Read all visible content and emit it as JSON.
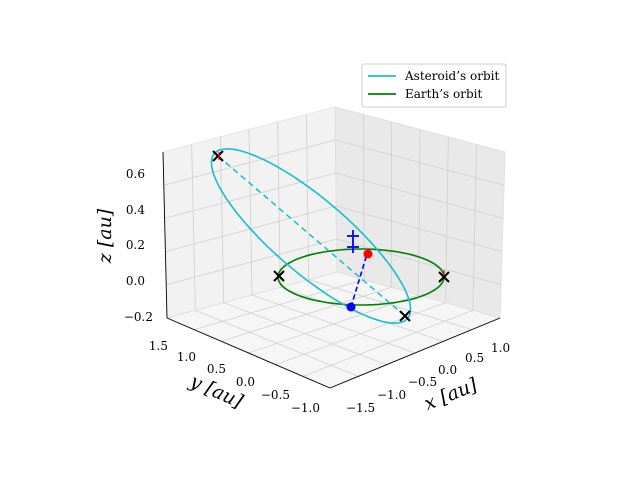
{
  "chart_data": {
    "type": "line3d",
    "title": "",
    "xlabel": "x [au]",
    "ylabel": "y [au]",
    "zlabel": "z [au]",
    "xlim": [
      -1.6,
      1.15
    ],
    "ylim": [
      -1.1,
      1.6
    ],
    "zlim": [
      -0.22,
      0.72
    ],
    "x_ticks": [
      "−1.5",
      "−1.0",
      "−0.5",
      "0.0",
      "0.5",
      "1.0"
    ],
    "y_ticks": [
      "1.5",
      "1.0",
      "0.5",
      "0.0",
      "−0.5",
      "−1.0"
    ],
    "z_ticks": [
      "0.6",
      "0.4",
      "0.2",
      "0.0",
      "−0.2"
    ],
    "grid": true,
    "legend": {
      "location": "top-right",
      "entries": [
        "Asteroid’s orbit",
        "Earth’s orbit"
      ]
    },
    "series": [
      {
        "name": "Asteroid’s orbit",
        "color": "#17becf"
      },
      {
        "name": "Earth’s orbit",
        "color": "#008000"
      }
    ],
    "markers": [
      {
        "kind": "x",
        "label": "asteroid apsis",
        "color": "#000000"
      },
      {
        "kind": "x",
        "label": "asteroid apsis",
        "color": "#000000"
      },
      {
        "kind": "x",
        "label": "earth apsis",
        "color": "#000000"
      },
      {
        "kind": "x",
        "label": "earth apsis",
        "color": "#000000"
      },
      {
        "kind": "dot",
        "label": "earth position",
        "color": "#ff0000"
      },
      {
        "kind": "dot",
        "label": "asteroid position",
        "color": "#0000ff"
      },
      {
        "kind": "plus",
        "label": "focus",
        "color": "#0000ff"
      }
    ]
  }
}
